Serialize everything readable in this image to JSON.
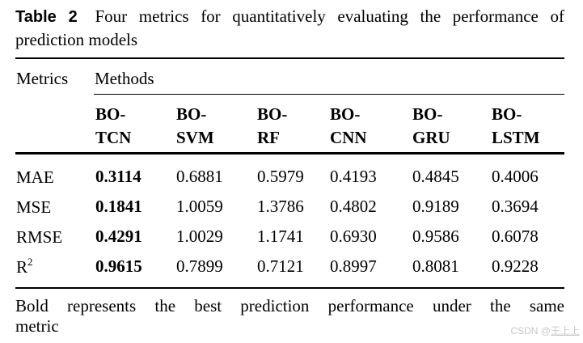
{
  "title": {
    "label": "Table 2",
    "caption_line1": "Four metrics for quantitatively evaluating the performance of",
    "caption_line2": "prediction models"
  },
  "table": {
    "stub_header": "Metrics",
    "group_header": "Methods",
    "methods": [
      {
        "name": "BO-TCN",
        "line1": "BO-",
        "line2": "TCN"
      },
      {
        "name": "BO-SVM",
        "line1": "BO-",
        "line2": "SVM"
      },
      {
        "name": "BO-RF",
        "line1": "BO-",
        "line2": "RF"
      },
      {
        "name": "BO-CNN",
        "line1": "BO-",
        "line2": "CNN"
      },
      {
        "name": "BO-GRU",
        "line1": "BO-",
        "line2": "GRU"
      },
      {
        "name": "BO-LSTM",
        "line1": "BO-",
        "line2": "LSTM"
      }
    ],
    "rows": [
      {
        "metric": "MAE",
        "metric_sup": "",
        "best_index": 0,
        "values": [
          "0.3114",
          "0.6881",
          "0.5979",
          "0.4193",
          "0.4845",
          "0.4006"
        ]
      },
      {
        "metric": "MSE",
        "metric_sup": "",
        "best_index": 0,
        "values": [
          "0.1841",
          "1.0059",
          "1.3786",
          "0.4802",
          "0.9189",
          "0.3694"
        ]
      },
      {
        "metric": "RMSE",
        "metric_sup": "",
        "best_index": 0,
        "values": [
          "0.4291",
          "1.0029",
          "1.1741",
          "0.6930",
          "0.9586",
          "0.6078"
        ]
      },
      {
        "metric": "R",
        "metric_sup": "2",
        "best_index": 0,
        "values": [
          "0.9615",
          "0.7899",
          "0.7121",
          "0.8997",
          "0.8081",
          "0.9228"
        ]
      }
    ]
  },
  "footnote": {
    "line1": "Bold represents the best prediction performance under the same",
    "line2": "metric"
  },
  "watermark": {
    "prefix": "CSDN @",
    "name": "王上上"
  },
  "colors": {
    "text": "#000000",
    "rule": "#000000",
    "watermark": "#c9c9c9"
  }
}
